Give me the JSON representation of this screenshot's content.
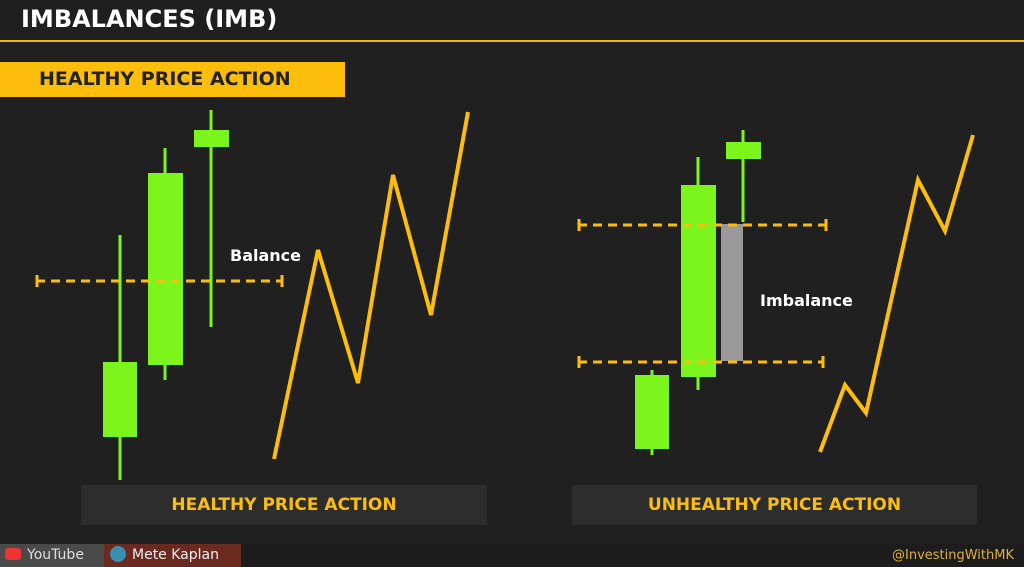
{
  "header": {
    "title": "IMBALANCES (IMB)"
  },
  "section_label": "HEALTHY PRICE ACTION",
  "left": {
    "annotation": "Balance",
    "caption": "HEALTHY PRICE ACTION"
  },
  "right": {
    "annotation": "Imbalance",
    "caption": "UNHEALTHY PRICE ACTION"
  },
  "footer": {
    "youtube": "YouTube",
    "channel": "Mete Kaplan",
    "handle": "@InvestingWithMK"
  },
  "colors": {
    "accent": "#fcbe0a",
    "candle": "#7cf51c",
    "imbalance": "#9a9a9a"
  }
}
